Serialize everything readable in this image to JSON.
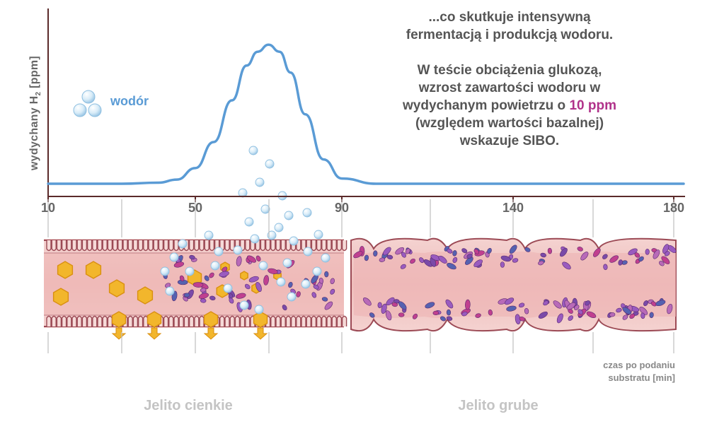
{
  "chart_data": {
    "type": "line",
    "ylabel": "wydychany H",
    "ylabel_sub": "2",
    "ylabel_unit": " [ppm]",
    "xlabel": "czas po podaniu substratu [min]",
    "xlim": [
      10,
      180
    ],
    "ticks": [
      10,
      50,
      90,
      140,
      180
    ],
    "series": [
      {
        "name": "wodór",
        "color": "#5a9bd5",
        "x": [
          10,
          30,
          40,
          45,
          50,
          55,
          60,
          64,
          67,
          70,
          73,
          76,
          80,
          85,
          90,
          100,
          120,
          140,
          160,
          180
        ],
        "y": [
          0,
          0,
          0.3,
          1.2,
          4.5,
          12,
          24,
          34,
          38,
          40,
          38,
          32,
          20,
          7,
          1.5,
          0,
          0,
          0,
          0,
          0
        ]
      }
    ],
    "ylim": [
      0,
      48
    ]
  },
  "annotation": {
    "line1": "...co skutkuje intensywną",
    "line2": "fermentacją i produkcją wodoru.",
    "line3": "W teście obciążenia glukozą,",
    "line4": "wzrost zawartości wodoru w",
    "line5_pre": "wydychanym powietrzu o ",
    "line5_hl": "10 ppm",
    "line6": "(względem wartości bazalnej)",
    "line7": "wskazuje SIBO.",
    "highlight_color": "#b0328a"
  },
  "time_label": {
    "line1": "czas po podaniu",
    "line2": "substratu [min]"
  },
  "regions": {
    "small_intestine": "Jelito cienkie",
    "large_intestine": "Jelito grube"
  },
  "colors": {
    "axis": "#5b2a2a",
    "tissue": "#f2c7c5",
    "tissue_border": "#9c4a55",
    "glucose": "#f2b62c",
    "bacteria_purple": "#9a5bbf",
    "bacteria_magenta": "#c0408f",
    "bacteria_blue": "#5562b0",
    "bubble": "#cfe6f5"
  }
}
